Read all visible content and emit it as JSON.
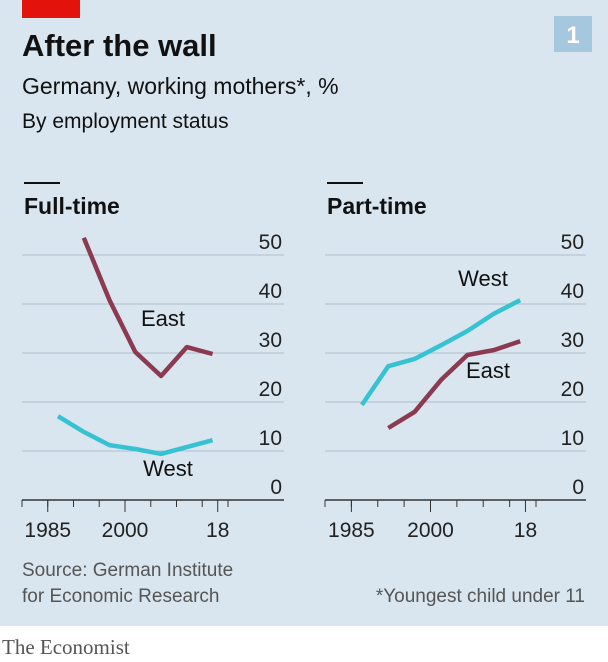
{
  "title": "After the wall",
  "subtitle": "Germany, working mothers*, %",
  "description": "By employment status",
  "badge": "1",
  "source": [
    "Source: German Institute",
    "for Economic Research"
  ],
  "footnote": "*Youngest child under 11",
  "brand": "The Economist",
  "chart_data": [
    {
      "type": "line",
      "title": "Full-time",
      "xlim": [
        1980,
        2020
      ],
      "ylim": [
        0,
        50
      ],
      "xticks": [
        1985,
        2000,
        {
          "value": 2018,
          "label": "18"
        }
      ],
      "xminorticks": [
        1980,
        1985,
        1990,
        1995,
        2000,
        2005,
        2010,
        2015,
        2020
      ],
      "yticks": [
        0,
        10,
        20,
        30,
        40,
        50
      ],
      "grid": true,
      "series": [
        {
          "name": "East",
          "color": "#8c3a4f",
          "x": [
            1992,
            1997,
            2002,
            2007,
            2012,
            2017
          ],
          "values": [
            53.5,
            40.8,
            30.2,
            25.3,
            31.2,
            29.8
          ]
        },
        {
          "name": "West",
          "color": "#37c2d4",
          "x": [
            1987,
            1992,
            1997,
            2002,
            2007,
            2012,
            2017
          ],
          "values": [
            17.1,
            13.9,
            11.2,
            10.4,
            9.4,
            10.8,
            12.2
          ]
        }
      ]
    },
    {
      "type": "line",
      "title": "Part-time",
      "xlim": [
        1980,
        2020
      ],
      "ylim": [
        0,
        50
      ],
      "xticks": [
        1985,
        2000,
        {
          "value": 2018,
          "label": "18"
        }
      ],
      "xminorticks": [
        1980,
        1985,
        1990,
        1995,
        2000,
        2005,
        2010,
        2015,
        2020
      ],
      "yticks": [
        0,
        10,
        20,
        30,
        40,
        50
      ],
      "grid": true,
      "series": [
        {
          "name": "West",
          "color": "#37c2d4",
          "x": [
            1987,
            1992,
            1997,
            2002,
            2007,
            2012,
            2017
          ],
          "values": [
            19.4,
            27.3,
            28.8,
            31.6,
            34.5,
            38.0,
            40.8
          ]
        },
        {
          "name": "East",
          "color": "#8c3a4f",
          "x": [
            1992,
            1997,
            2002,
            2007,
            2012,
            2017
          ],
          "values": [
            14.7,
            18.0,
            24.5,
            29.6,
            30.6,
            32.4
          ]
        }
      ]
    }
  ]
}
